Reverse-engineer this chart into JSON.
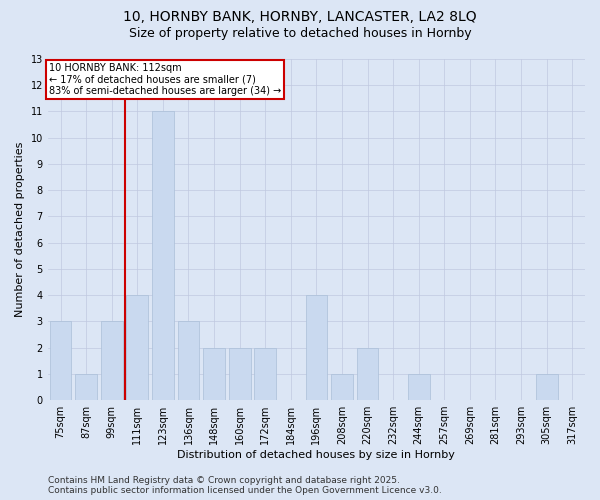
{
  "title_line1": "10, HORNBY BANK, HORNBY, LANCASTER, LA2 8LQ",
  "title_line2": "Size of property relative to detached houses in Hornby",
  "xlabel": "Distribution of detached houses by size in Hornby",
  "ylabel": "Number of detached properties",
  "categories": [
    "75sqm",
    "87sqm",
    "99sqm",
    "111sqm",
    "123sqm",
    "136sqm",
    "148sqm",
    "160sqm",
    "172sqm",
    "184sqm",
    "196sqm",
    "208sqm",
    "220sqm",
    "232sqm",
    "244sqm",
    "257sqm",
    "269sqm",
    "281sqm",
    "293sqm",
    "305sqm",
    "317sqm"
  ],
  "values": [
    3,
    1,
    3,
    4,
    11,
    3,
    2,
    2,
    2,
    0,
    4,
    1,
    2,
    0,
    1,
    0,
    0,
    0,
    0,
    1,
    0
  ],
  "bar_color": "#c9d9ef",
  "bar_edge_color": "#aabfd8",
  "subject_label": "10 HORNBY BANK: 112sqm",
  "annotation_line2": "← 17% of detached houses are smaller (7)",
  "annotation_line3": "83% of semi-detached houses are larger (34) →",
  "annotation_box_color": "#ffffff",
  "annotation_box_edge": "#cc0000",
  "subject_line_color": "#cc0000",
  "ylim": [
    0,
    13
  ],
  "yticks": [
    0,
    1,
    2,
    3,
    4,
    5,
    6,
    7,
    8,
    9,
    10,
    11,
    12,
    13
  ],
  "grid_color": "#c0c8e0",
  "background_color": "#dce6f5",
  "plot_bg_color": "#dce6f5",
  "footer": "Contains HM Land Registry data © Crown copyright and database right 2025.\nContains public sector information licensed under the Open Government Licence v3.0.",
  "title_fontsize": 10,
  "subtitle_fontsize": 9,
  "axis_label_fontsize": 8,
  "tick_fontsize": 7,
  "annotation_fontsize": 7,
  "footer_fontsize": 6.5
}
